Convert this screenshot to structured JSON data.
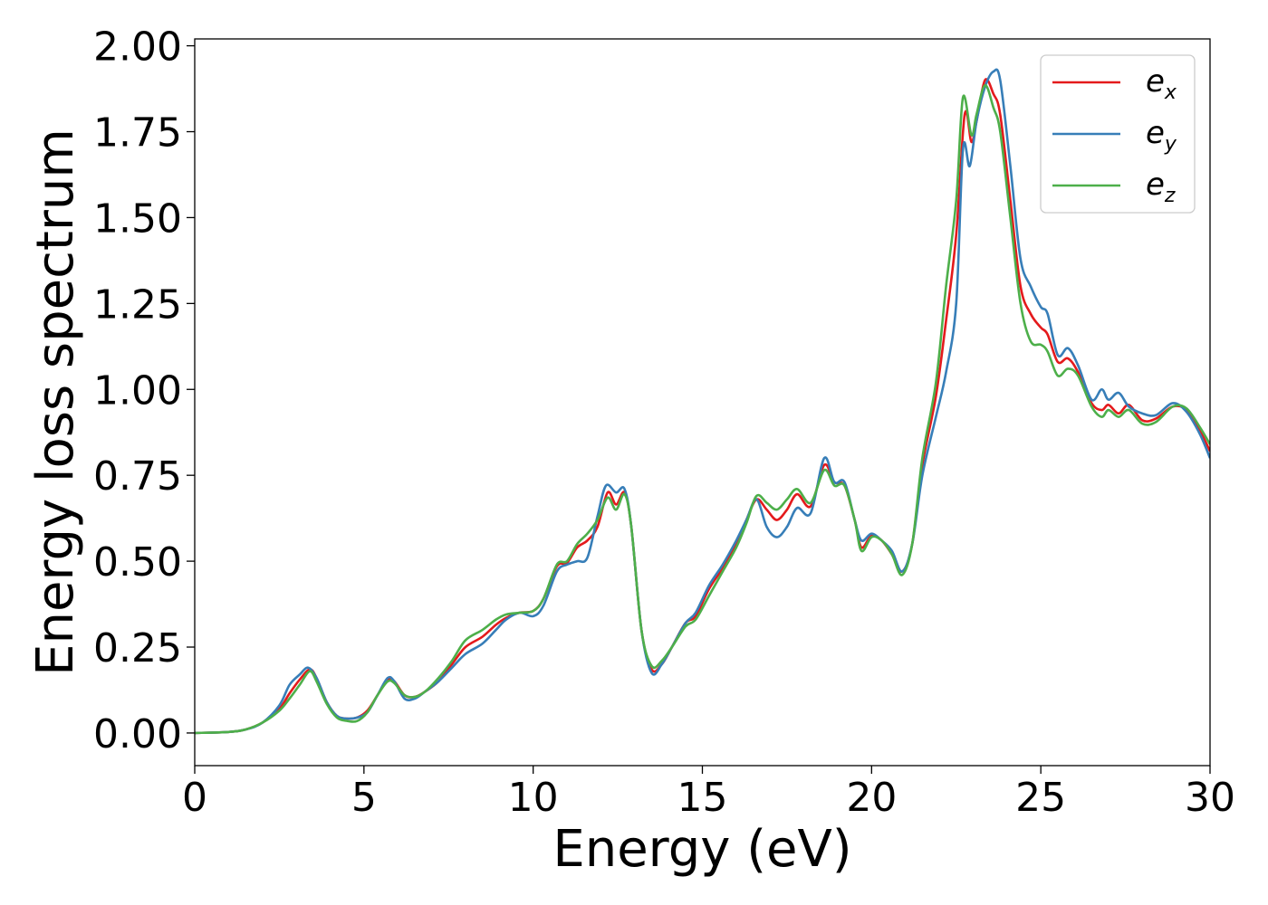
{
  "chart_data": {
    "type": "line",
    "title": "",
    "xlabel": "Energy (eV)",
    "ylabel": "Energy loss spectrum",
    "xlim": [
      0,
      30
    ],
    "ylim": [
      -0.095,
      2.02
    ],
    "xticks": [
      0,
      5,
      10,
      15,
      20,
      25,
      30
    ],
    "yticks": [
      "0.00",
      "0.25",
      "0.50",
      "0.75",
      "1.00",
      "1.25",
      "1.50",
      "1.75",
      "2.00"
    ],
    "grid": false,
    "legend_position": "top-right",
    "series": [
      {
        "name": "e",
        "subscript": "x",
        "color": "#e41a1c",
        "points": [
          [
            0,
            0.0
          ],
          [
            1,
            0.003
          ],
          [
            1.5,
            0.01
          ],
          [
            2,
            0.03
          ],
          [
            2.5,
            0.07
          ],
          [
            2.8,
            0.115
          ],
          [
            3.1,
            0.155
          ],
          [
            3.4,
            0.185
          ],
          [
            3.6,
            0.16
          ],
          [
            3.9,
            0.09
          ],
          [
            4.2,
            0.05
          ],
          [
            4.5,
            0.042
          ],
          [
            4.8,
            0.045
          ],
          [
            5.1,
            0.065
          ],
          [
            5.4,
            0.11
          ],
          [
            5.7,
            0.155
          ],
          [
            5.9,
            0.15
          ],
          [
            6.2,
            0.11
          ],
          [
            6.5,
            0.105
          ],
          [
            6.8,
            0.12
          ],
          [
            7.2,
            0.15
          ],
          [
            7.6,
            0.2
          ],
          [
            8,
            0.25
          ],
          [
            8.5,
            0.28
          ],
          [
            8.9,
            0.315
          ],
          [
            9.2,
            0.335
          ],
          [
            9.6,
            0.35
          ],
          [
            10,
            0.355
          ],
          [
            10.3,
            0.39
          ],
          [
            10.7,
            0.485
          ],
          [
            11,
            0.495
          ],
          [
            11.3,
            0.54
          ],
          [
            11.6,
            0.56
          ],
          [
            11.9,
            0.6
          ],
          [
            12.2,
            0.7
          ],
          [
            12.45,
            0.665
          ],
          [
            12.7,
            0.7
          ],
          [
            12.9,
            0.6
          ],
          [
            13.2,
            0.3
          ],
          [
            13.5,
            0.185
          ],
          [
            13.8,
            0.2
          ],
          [
            14.1,
            0.25
          ],
          [
            14.5,
            0.32
          ],
          [
            14.8,
            0.34
          ],
          [
            15.2,
            0.42
          ],
          [
            15.6,
            0.48
          ],
          [
            16,
            0.55
          ],
          [
            16.3,
            0.62
          ],
          [
            16.6,
            0.68
          ],
          [
            16.9,
            0.65
          ],
          [
            17.2,
            0.62
          ],
          [
            17.5,
            0.65
          ],
          [
            17.8,
            0.695
          ],
          [
            18.2,
            0.66
          ],
          [
            18.6,
            0.78
          ],
          [
            18.9,
            0.73
          ],
          [
            19.2,
            0.72
          ],
          [
            19.5,
            0.62
          ],
          [
            19.7,
            0.54
          ],
          [
            20,
            0.575
          ],
          [
            20.3,
            0.56
          ],
          [
            20.6,
            0.52
          ],
          [
            20.9,
            0.47
          ],
          [
            21.2,
            0.55
          ],
          [
            21.5,
            0.78
          ],
          [
            21.9,
            0.98
          ],
          [
            22.2,
            1.2
          ],
          [
            22.5,
            1.45
          ],
          [
            22.75,
            1.8
          ],
          [
            22.95,
            1.72
          ],
          [
            23.1,
            1.78
          ],
          [
            23.35,
            1.9
          ],
          [
            23.6,
            1.86
          ],
          [
            23.8,
            1.8
          ],
          [
            24.1,
            1.55
          ],
          [
            24.4,
            1.3
          ],
          [
            24.7,
            1.22
          ],
          [
            25,
            1.18
          ],
          [
            25.2,
            1.16
          ],
          [
            25.5,
            1.08
          ],
          [
            25.8,
            1.09
          ],
          [
            26.1,
            1.05
          ],
          [
            26.5,
            0.96
          ],
          [
            26.8,
            0.94
          ],
          [
            27,
            0.955
          ],
          [
            27.3,
            0.93
          ],
          [
            27.6,
            0.955
          ],
          [
            28,
            0.91
          ],
          [
            28.4,
            0.915
          ],
          [
            28.9,
            0.95
          ],
          [
            29.3,
            0.94
          ],
          [
            29.7,
            0.88
          ],
          [
            30,
            0.82
          ]
        ]
      },
      {
        "name": "e",
        "subscript": "y",
        "color": "#377eb8",
        "points": [
          [
            0,
            0.0
          ],
          [
            1,
            0.003
          ],
          [
            1.5,
            0.01
          ],
          [
            2,
            0.03
          ],
          [
            2.5,
            0.08
          ],
          [
            2.8,
            0.14
          ],
          [
            3.1,
            0.17
          ],
          [
            3.35,
            0.19
          ],
          [
            3.6,
            0.16
          ],
          [
            3.9,
            0.09
          ],
          [
            4.2,
            0.05
          ],
          [
            4.5,
            0.042
          ],
          [
            4.8,
            0.045
          ],
          [
            5.1,
            0.06
          ],
          [
            5.4,
            0.11
          ],
          [
            5.7,
            0.16
          ],
          [
            5.9,
            0.15
          ],
          [
            6.2,
            0.1
          ],
          [
            6.5,
            0.1
          ],
          [
            6.8,
            0.12
          ],
          [
            7.2,
            0.15
          ],
          [
            7.6,
            0.19
          ],
          [
            8,
            0.23
          ],
          [
            8.5,
            0.26
          ],
          [
            8.9,
            0.3
          ],
          [
            9.2,
            0.33
          ],
          [
            9.6,
            0.35
          ],
          [
            10,
            0.34
          ],
          [
            10.3,
            0.37
          ],
          [
            10.7,
            0.47
          ],
          [
            11,
            0.49
          ],
          [
            11.3,
            0.5
          ],
          [
            11.6,
            0.51
          ],
          [
            11.9,
            0.63
          ],
          [
            12.15,
            0.72
          ],
          [
            12.45,
            0.7
          ],
          [
            12.7,
            0.71
          ],
          [
            12.9,
            0.6
          ],
          [
            13.2,
            0.3
          ],
          [
            13.5,
            0.175
          ],
          [
            13.8,
            0.2
          ],
          [
            14.1,
            0.25
          ],
          [
            14.5,
            0.32
          ],
          [
            14.8,
            0.35
          ],
          [
            15.2,
            0.43
          ],
          [
            15.6,
            0.49
          ],
          [
            16,
            0.56
          ],
          [
            16.3,
            0.62
          ],
          [
            16.6,
            0.68
          ],
          [
            16.9,
            0.6
          ],
          [
            17.2,
            0.57
          ],
          [
            17.5,
            0.6
          ],
          [
            17.8,
            0.655
          ],
          [
            18.2,
            0.64
          ],
          [
            18.6,
            0.8
          ],
          [
            18.9,
            0.73
          ],
          [
            19.2,
            0.73
          ],
          [
            19.5,
            0.62
          ],
          [
            19.7,
            0.56
          ],
          [
            20,
            0.58
          ],
          [
            20.3,
            0.56
          ],
          [
            20.6,
            0.53
          ],
          [
            20.9,
            0.47
          ],
          [
            21.2,
            0.55
          ],
          [
            21.5,
            0.75
          ],
          [
            21.9,
            0.92
          ],
          [
            22.2,
            1.05
          ],
          [
            22.5,
            1.25
          ],
          [
            22.7,
            1.7
          ],
          [
            22.9,
            1.65
          ],
          [
            23.1,
            1.78
          ],
          [
            23.35,
            1.88
          ],
          [
            23.6,
            1.925
          ],
          [
            23.8,
            1.9
          ],
          [
            24.1,
            1.65
          ],
          [
            24.4,
            1.38
          ],
          [
            24.7,
            1.3
          ],
          [
            25,
            1.24
          ],
          [
            25.2,
            1.22
          ],
          [
            25.5,
            1.1
          ],
          [
            25.8,
            1.12
          ],
          [
            26.1,
            1.07
          ],
          [
            26.5,
            0.97
          ],
          [
            26.8,
            1.0
          ],
          [
            27,
            0.97
          ],
          [
            27.3,
            0.99
          ],
          [
            27.6,
            0.95
          ],
          [
            28,
            0.93
          ],
          [
            28.4,
            0.925
          ],
          [
            28.9,
            0.96
          ],
          [
            29.3,
            0.935
          ],
          [
            29.7,
            0.87
          ],
          [
            30,
            0.8
          ]
        ]
      },
      {
        "name": "e",
        "subscript": "z",
        "color": "#4daf4a",
        "points": [
          [
            0,
            0.0
          ],
          [
            1,
            0.003
          ],
          [
            1.5,
            0.01
          ],
          [
            2,
            0.03
          ],
          [
            2.5,
            0.065
          ],
          [
            2.8,
            0.1
          ],
          [
            3.1,
            0.14
          ],
          [
            3.4,
            0.18
          ],
          [
            3.6,
            0.15
          ],
          [
            3.9,
            0.085
          ],
          [
            4.2,
            0.045
          ],
          [
            4.5,
            0.035
          ],
          [
            4.8,
            0.035
          ],
          [
            5.1,
            0.06
          ],
          [
            5.4,
            0.11
          ],
          [
            5.7,
            0.15
          ],
          [
            5.9,
            0.145
          ],
          [
            6.2,
            0.11
          ],
          [
            6.5,
            0.105
          ],
          [
            6.8,
            0.12
          ],
          [
            7.2,
            0.16
          ],
          [
            7.6,
            0.21
          ],
          [
            8,
            0.27
          ],
          [
            8.5,
            0.3
          ],
          [
            8.9,
            0.33
          ],
          [
            9.2,
            0.345
          ],
          [
            9.6,
            0.35
          ],
          [
            10,
            0.355
          ],
          [
            10.3,
            0.39
          ],
          [
            10.7,
            0.49
          ],
          [
            11,
            0.5
          ],
          [
            11.3,
            0.55
          ],
          [
            11.6,
            0.58
          ],
          [
            11.9,
            0.62
          ],
          [
            12.2,
            0.685
          ],
          [
            12.45,
            0.65
          ],
          [
            12.7,
            0.695
          ],
          [
            12.9,
            0.6
          ],
          [
            13.2,
            0.3
          ],
          [
            13.5,
            0.195
          ],
          [
            13.8,
            0.21
          ],
          [
            14.1,
            0.25
          ],
          [
            14.5,
            0.31
          ],
          [
            14.8,
            0.33
          ],
          [
            15.2,
            0.4
          ],
          [
            15.6,
            0.47
          ],
          [
            16,
            0.54
          ],
          [
            16.3,
            0.61
          ],
          [
            16.6,
            0.69
          ],
          [
            16.9,
            0.67
          ],
          [
            17.2,
            0.65
          ],
          [
            17.5,
            0.68
          ],
          [
            17.8,
            0.71
          ],
          [
            18.2,
            0.67
          ],
          [
            18.6,
            0.765
          ],
          [
            18.9,
            0.72
          ],
          [
            19.2,
            0.72
          ],
          [
            19.5,
            0.62
          ],
          [
            19.7,
            0.53
          ],
          [
            20,
            0.57
          ],
          [
            20.3,
            0.56
          ],
          [
            20.6,
            0.52
          ],
          [
            20.9,
            0.46
          ],
          [
            21.2,
            0.55
          ],
          [
            21.5,
            0.8
          ],
          [
            21.9,
            1.02
          ],
          [
            22.2,
            1.3
          ],
          [
            22.5,
            1.55
          ],
          [
            22.7,
            1.85
          ],
          [
            22.95,
            1.74
          ],
          [
            23.1,
            1.8
          ],
          [
            23.35,
            1.885
          ],
          [
            23.6,
            1.82
          ],
          [
            23.8,
            1.75
          ],
          [
            24.1,
            1.5
          ],
          [
            24.4,
            1.25
          ],
          [
            24.7,
            1.14
          ],
          [
            25,
            1.13
          ],
          [
            25.2,
            1.11
          ],
          [
            25.5,
            1.04
          ],
          [
            25.8,
            1.06
          ],
          [
            26.1,
            1.04
          ],
          [
            26.5,
            0.95
          ],
          [
            26.8,
            0.92
          ],
          [
            27,
            0.94
          ],
          [
            27.3,
            0.92
          ],
          [
            27.6,
            0.94
          ],
          [
            28,
            0.9
          ],
          [
            28.4,
            0.905
          ],
          [
            28.9,
            0.95
          ],
          [
            29.3,
            0.945
          ],
          [
            29.7,
            0.89
          ],
          [
            30,
            0.84
          ]
        ]
      }
    ]
  }
}
